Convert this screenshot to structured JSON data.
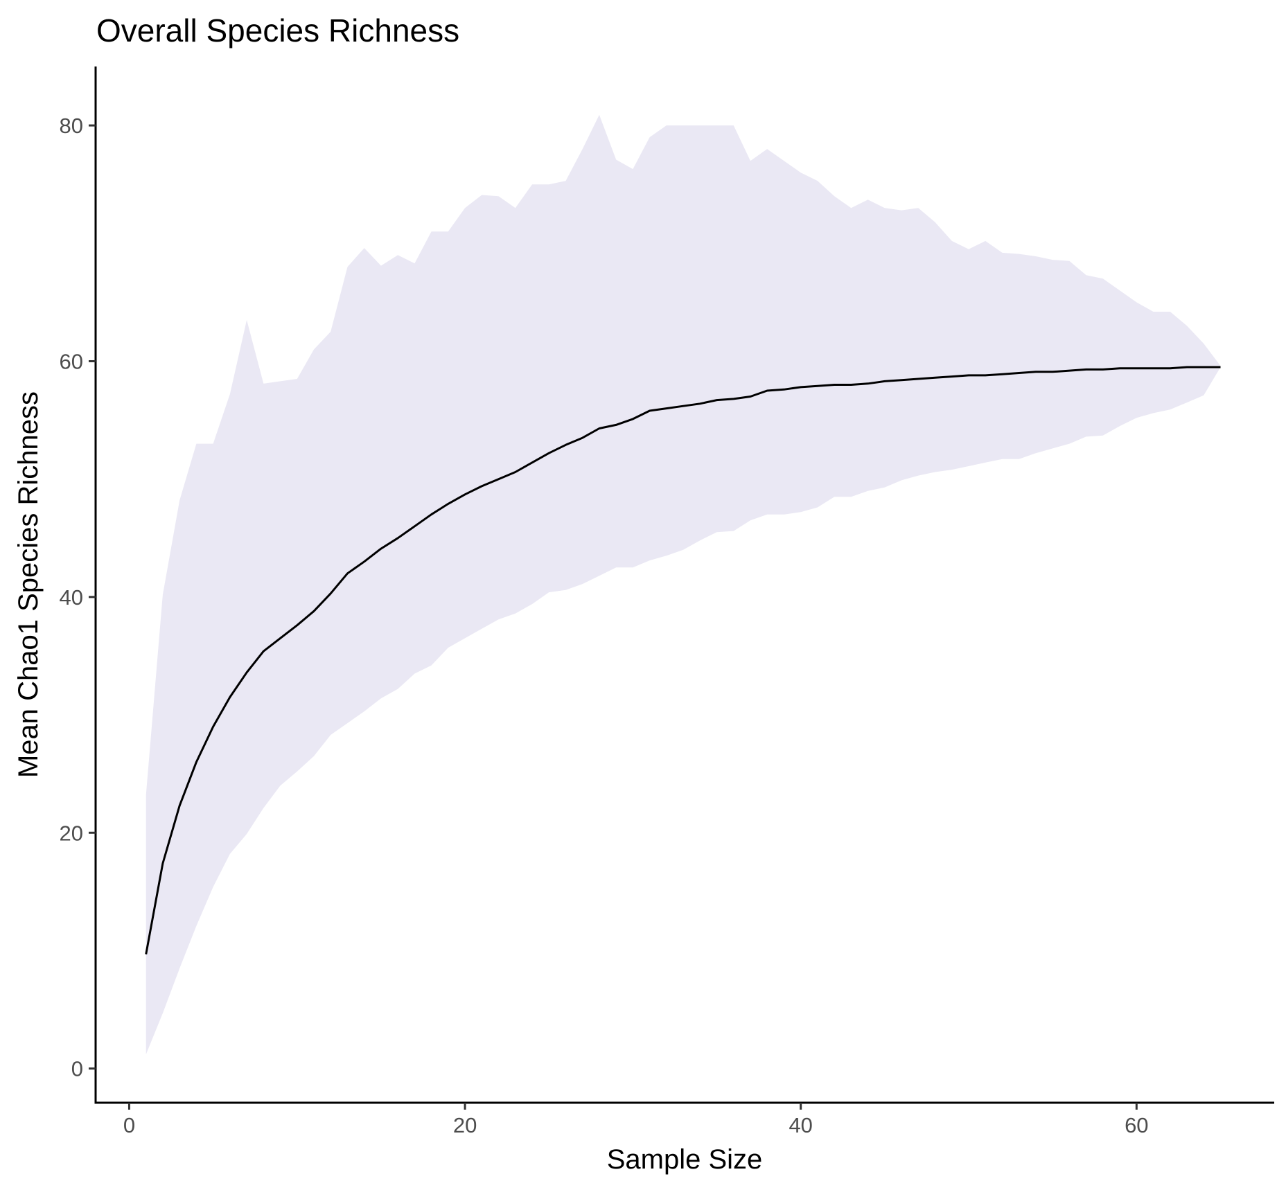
{
  "chart_data": {
    "type": "area",
    "title": "Overall Species Richness",
    "xlabel": "Sample Size",
    "ylabel": "Mean Chao1 Species Richness",
    "xlim": [
      -2,
      68.2
    ],
    "ylim": [
      -2.9,
      85
    ],
    "x_ticks": [
      0,
      20,
      40,
      60
    ],
    "y_ticks": [
      0,
      20,
      40,
      60,
      80
    ],
    "x_tick_labels": [
      "0",
      "20",
      "40",
      "60"
    ],
    "y_tick_labels": [
      "0",
      "20",
      "40",
      "60",
      "80"
    ],
    "grid": false,
    "legend": "none",
    "colors": {
      "band": "#eae8f4",
      "line": "#000000",
      "axis": "#000000",
      "tick_label": "#4d4d4d"
    },
    "x": [
      1,
      2,
      3,
      4,
      5,
      6,
      7,
      8,
      9,
      10,
      11,
      12,
      13,
      14,
      15,
      16,
      17,
      18,
      19,
      20,
      21,
      22,
      23,
      24,
      25,
      26,
      27,
      28,
      29,
      30,
      31,
      32,
      33,
      34,
      35,
      36,
      37,
      38,
      39,
      40,
      41,
      42,
      43,
      44,
      45,
      46,
      47,
      48,
      49,
      50,
      51,
      52,
      53,
      54,
      55,
      56,
      57,
      58,
      59,
      60,
      61,
      62,
      63,
      64,
      65
    ],
    "series": [
      {
        "role": "mean",
        "values": [
          9.7,
          17.4,
          22.3,
          26.0,
          29.0,
          31.5,
          33.6,
          35.4,
          36.5,
          37.6,
          38.8,
          40.3,
          42.0,
          43.0,
          44.1,
          45.0,
          46.0,
          47.0,
          47.9,
          48.7,
          49.4,
          50.0,
          50.6,
          51.4,
          52.2,
          52.9,
          53.5,
          54.3,
          54.6,
          55.1,
          55.8,
          56.0,
          56.2,
          56.4,
          56.7,
          56.8,
          57.0,
          57.5,
          57.6,
          57.8,
          57.9,
          58.0,
          58.0,
          58.1,
          58.3,
          58.4,
          58.5,
          58.6,
          58.7,
          58.8,
          58.8,
          58.9,
          59.0,
          59.1,
          59.1,
          59.2,
          59.3,
          59.3,
          59.4,
          59.4,
          59.4,
          59.4,
          59.5,
          59.5,
          59.5
        ]
      },
      {
        "role": "upper",
        "values": [
          23.2,
          40.2,
          48.2,
          53.0,
          53.0,
          57.2,
          63.5,
          58.1,
          58.3,
          58.5,
          61.0,
          62.5,
          68.0,
          69.6,
          68.1,
          69.0,
          68.3,
          71.0,
          71.0,
          73.0,
          74.1,
          74.0,
          73.0,
          75.0,
          75.0,
          75.3,
          78.0,
          80.9,
          77.1,
          76.3,
          79.0,
          80.0,
          80.0,
          80.0,
          80.0,
          80.0,
          77.0,
          78.0,
          77.0,
          76.0,
          75.3,
          74.0,
          73.0,
          73.7,
          73.0,
          72.8,
          73.0,
          71.8,
          70.2,
          69.5,
          70.2,
          69.2,
          69.1,
          68.9,
          68.6,
          68.5,
          67.3,
          67.0,
          66.0,
          65.0,
          64.2,
          64.2,
          63.0,
          61.5,
          59.6
        ]
      },
      {
        "role": "lower",
        "values": [
          1.2,
          4.7,
          8.5,
          12.1,
          15.4,
          18.2,
          19.9,
          22.1,
          24.0,
          25.2,
          26.5,
          28.3,
          29.3,
          30.3,
          31.4,
          32.2,
          33.5,
          34.2,
          35.7,
          36.5,
          37.3,
          38.1,
          38.6,
          39.4,
          40.4,
          40.6,
          41.1,
          41.8,
          42.5,
          42.5,
          43.1,
          43.5,
          44.0,
          44.8,
          45.5,
          45.6,
          46.5,
          47.0,
          47.0,
          47.2,
          47.6,
          48.5,
          48.5,
          49.0,
          49.3,
          49.9,
          50.3,
          50.6,
          50.8,
          51.1,
          51.4,
          51.7,
          51.7,
          52.2,
          52.6,
          53.0,
          53.6,
          53.7,
          54.5,
          55.2,
          55.6,
          55.9,
          56.5,
          57.1,
          59.5
        ]
      }
    ]
  }
}
